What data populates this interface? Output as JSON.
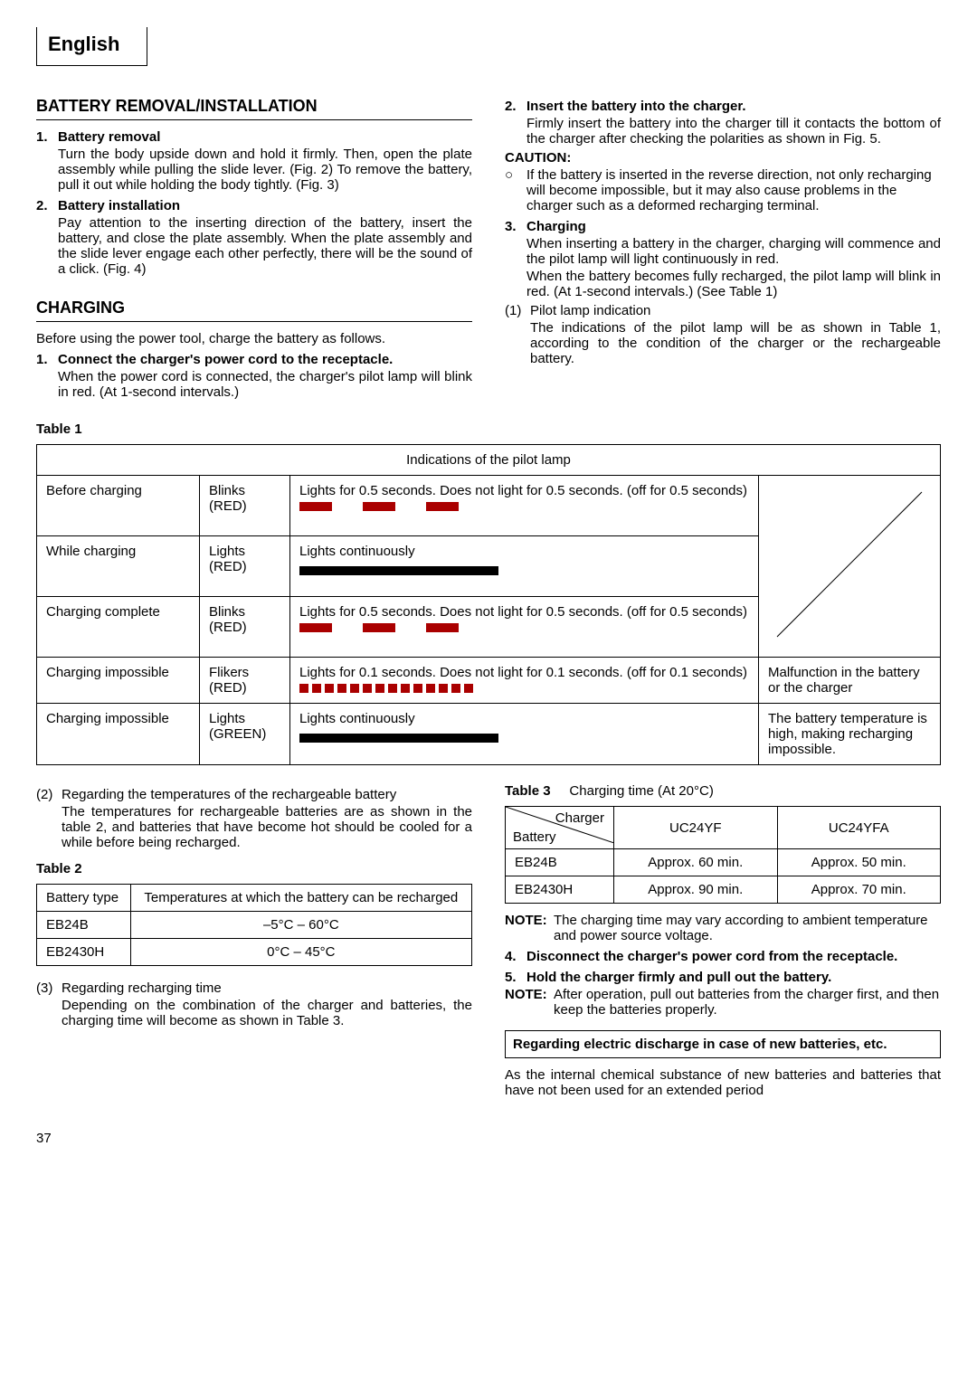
{
  "language": "English",
  "sections": {
    "battery_removal": {
      "heading": "BATTERY REMOVAL/INSTALLATION",
      "item1_num": "1.",
      "item1_title": "Battery removal",
      "item1_text": "Turn the body upside down and hold it firmly. Then, open the plate assembly while pulling the slide lever. (Fig. 2)  To remove the battery, pull it out while holding the body tightly. (Fig. 3)",
      "item2_num": "2.",
      "item2_title": "Battery installation",
      "item2_text": "Pay attention to the inserting direction of the battery, insert the battery, and close the plate assembly. When the plate assembly and the slide lever engage each other perfectly, there will be the sound of a click. (Fig. 4)"
    },
    "charging": {
      "heading": "CHARGING",
      "intro": "Before using the power tool, charge the battery as follows.",
      "item1_num": "1.",
      "item1_title": "Connect the charger's power cord to the receptacle.",
      "item1_text": "When the power cord is connected, the charger's pilot lamp will blink in red. (At 1-second intervals.)",
      "item2_num": "2.",
      "item2_title": "Insert the battery into the charger.",
      "item2_text": "Firmly insert the battery into the charger till it contacts the bottom of the charger after checking the polarities as shown in Fig. 5.",
      "caution_label": "CAUTION:",
      "caution_bullet": "If the battery is inserted in the reverse direction, not only recharging will become impossible, but it may also cause problems in the charger such as a deformed recharging terminal.",
      "item3_num": "3.",
      "item3_title": "Charging",
      "item3_text1": "When inserting a battery in the charger, charging will commence and the pilot lamp will light continuously in red.",
      "item3_text2": "When the battery becomes fully recharged, the pilot lamp will blink in red. (At 1-second intervals.) (See Table 1)",
      "pilot_num": "(1)",
      "pilot_title": "Pilot lamp indication",
      "pilot_text": "The indications of the pilot lamp will be as shown in Table 1, according to the condition of the charger or the rechargeable battery."
    }
  },
  "table1": {
    "title": "Table 1",
    "caption": "Indications of the pilot lamp",
    "rows": [
      {
        "state": "Before charging",
        "mode": "Blinks (RED)",
        "desc": "Lights for 0.5 seconds. Does not light for 0.5 seconds. (off for 0.5 seconds)",
        "note": "",
        "pattern": "blink05"
      },
      {
        "state": "While charging",
        "mode": "Lights (RED)",
        "desc": "Lights continuously",
        "note": "",
        "pattern": "solid"
      },
      {
        "state": "Charging complete",
        "mode": "Blinks (RED)",
        "desc": "Lights for 0.5 seconds. Does not light for 0.5 seconds. (off for 0.5 seconds)",
        "note": "",
        "pattern": "blink05"
      },
      {
        "state": "Charging impossible",
        "mode": "Flikers (RED)",
        "desc": "Lights for 0.1 seconds. Does not light for 0.1 seconds. (off for 0.1 seconds)",
        "note": "Malfunction in the battery or the charger",
        "pattern": "blink01"
      },
      {
        "state": "Charging impossible",
        "mode": "Lights (GREEN)",
        "desc": "Lights continuously",
        "note": "The battery temperature is high, making recharging impossible.",
        "pattern": "solid"
      }
    ]
  },
  "after_table1": {
    "item2_num": "(2)",
    "item2_title": "Regarding the temperatures of the rechargeable battery",
    "item2_text": "The temperatures for rechargeable batteries are as shown in the table 2, and batteries that have become hot should be cooled for a while before being recharged.",
    "table2_title": "Table 2",
    "item3_num": "(3)",
    "item3_title": "Regarding recharging time",
    "item3_text": "Depending on the combination of the charger and batteries, the charging time will become as shown in Table 3."
  },
  "table2": {
    "col1": "Battery type",
    "col2": "Temperatures at which the battery can be recharged",
    "rows": [
      {
        "type": "EB24B",
        "temp": "–5°C  –  60°C"
      },
      {
        "type": "EB2430H",
        "temp": "0°C  –  45°C"
      }
    ]
  },
  "table3": {
    "title": "Table 3",
    "subtitle": "Charging time (At 20°C)",
    "corner_top": "Charger",
    "corner_bottom": "Battery",
    "chargers": [
      "UC24YF",
      "UC24YFA"
    ],
    "rows": [
      {
        "battery": "EB24B",
        "t1": "Approx. 60 min.",
        "t2": "Approx. 50 min."
      },
      {
        "battery": "EB2430H",
        "t1": "Approx. 90 min.",
        "t2": "Approx. 70 min."
      }
    ]
  },
  "right_bottom": {
    "note1_label": "NOTE:",
    "note1_text": "The charging time may vary according to ambient temperature and power source voltage.",
    "item4_num": "4.",
    "item4_title": "Disconnect the charger's power cord from the receptacle.",
    "item5_num": "5.",
    "item5_title": "Hold the charger firmly and pull out the battery.",
    "note2_label": "NOTE:",
    "note2_text": "After operation, pull out batteries from the charger first, and then keep the batteries properly.",
    "box_text": "Regarding electric discharge in case of new batteries, etc.",
    "trailing": "As the internal chemical substance of new batteries and batteries that have not been used for an extended period"
  },
  "page_number": "37",
  "colors": {
    "red": "#a00000"
  }
}
